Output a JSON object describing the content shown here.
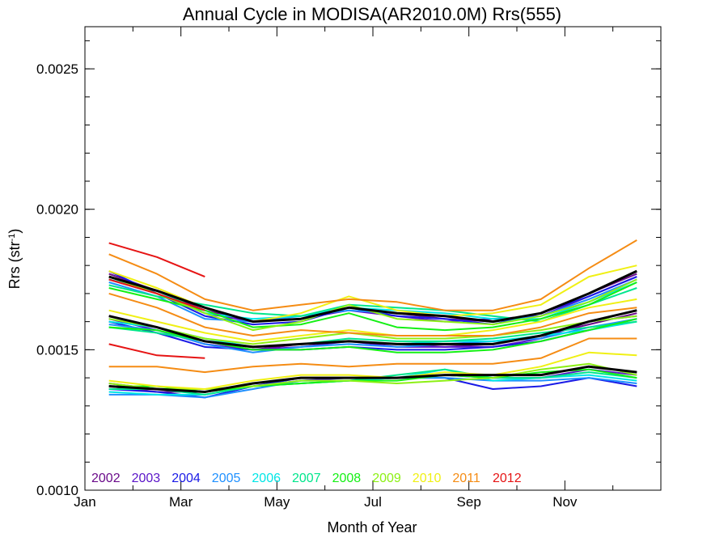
{
  "chart_data": {
    "type": "line",
    "title": "Annual Cycle in MODISA(AR2010.0M) Rrs(555)",
    "xlabel": "Month of Year",
    "ylabel_main": "Rrs (str",
    "ylabel_sup": "-1",
    "ylabel_tail": ")",
    "xlim": [
      0,
      12
    ],
    "ylim": [
      0.001,
      0.00265
    ],
    "x_ticks": [
      {
        "value": 0,
        "label": "Jan"
      },
      {
        "value": 2,
        "label": "Mar"
      },
      {
        "value": 4,
        "label": "May"
      },
      {
        "value": 6,
        "label": "Jul"
      },
      {
        "value": 8,
        "label": "Sep"
      },
      {
        "value": 10,
        "label": "Nov"
      }
    ],
    "x_minor_ticks": [
      1,
      3,
      5,
      7,
      9,
      11
    ],
    "y_ticks": [
      {
        "value": 0.001,
        "label": "0.0010"
      },
      {
        "value": 0.0015,
        "label": "0.0015"
      },
      {
        "value": 0.002,
        "label": "0.0020"
      },
      {
        "value": 0.0025,
        "label": "0.0025"
      }
    ],
    "y_minor_step": 0.0001,
    "x": [
      0.5,
      1.5,
      2.5,
      3.5,
      4.5,
      5.5,
      6.5,
      7.5,
      8.5,
      9.5,
      10.5,
      11.5
    ],
    "legend": [
      {
        "label": "2002",
        "color": "#6a0a8a"
      },
      {
        "label": "2003",
        "color": "#5a14c8"
      },
      {
        "label": "2004",
        "color": "#1a1ae6"
      },
      {
        "label": "2005",
        "color": "#1e90ff"
      },
      {
        "label": "2006",
        "color": "#00e6e6"
      },
      {
        "label": "2007",
        "color": "#00e68c"
      },
      {
        "label": "2008",
        "color": "#14f014"
      },
      {
        "label": "2009",
        "color": "#8cf014"
      },
      {
        "label": "2010",
        "color": "#f0f014"
      },
      {
        "label": "2011",
        "color": "#f58c14"
      },
      {
        "label": "2012",
        "color": "#e61414"
      }
    ],
    "series": [
      {
        "year": "2002",
        "color": "#6a0a8a",
        "group": "high",
        "values": [
          0.00177,
          0.00171,
          0.00164,
          0.0016,
          0.00161,
          0.00165,
          0.00163,
          0.00161,
          0.0016,
          0.00163,
          0.0017,
          0.00177
        ]
      },
      {
        "year": "2003",
        "color": "#5a14c8",
        "group": "high",
        "values": [
          0.00175,
          0.0017,
          0.00163,
          0.0016,
          0.00161,
          0.00164,
          0.00162,
          0.0016,
          0.00161,
          0.00162,
          0.00169,
          0.00176
        ]
      },
      {
        "year": "2004",
        "color": "#1a1ae6",
        "group": "high",
        "values": [
          0.00178,
          0.0017,
          0.00162,
          0.00159,
          0.0016,
          0.00165,
          0.00162,
          0.00161,
          0.00159,
          0.00163,
          0.00169,
          0.00176
        ]
      },
      {
        "year": "2005",
        "color": "#1e90ff",
        "group": "high",
        "values": [
          0.00174,
          0.00169,
          0.00161,
          0.0016,
          0.00162,
          0.00164,
          0.00163,
          0.00162,
          0.0016,
          0.00162,
          0.00168,
          0.00175
        ]
      },
      {
        "year": "2006",
        "color": "#00e6e6",
        "group": "high",
        "values": [
          0.00175,
          0.00171,
          0.00163,
          0.00161,
          0.00162,
          0.00165,
          0.00164,
          0.00163,
          0.00161,
          0.00161,
          0.00167,
          0.00174
        ]
      },
      {
        "year": "2007",
        "color": "#00e68c",
        "group": "high",
        "values": [
          0.00173,
          0.00169,
          0.00166,
          0.00163,
          0.00162,
          0.00166,
          0.00165,
          0.00164,
          0.00162,
          0.0016,
          0.00166,
          0.00172
        ]
      },
      {
        "year": "2008",
        "color": "#14f014",
        "group": "high",
        "values": [
          0.00172,
          0.00168,
          0.00164,
          0.00158,
          0.00159,
          0.00163,
          0.00158,
          0.00157,
          0.00158,
          0.00161,
          0.00166,
          0.00174
        ]
      },
      {
        "year": "2009",
        "color": "#8cf014",
        "group": "high",
        "values": [
          0.00176,
          0.0017,
          0.00163,
          0.00157,
          0.0016,
          0.00166,
          0.00161,
          0.0016,
          0.00159,
          0.00162,
          0.00167,
          0.00175
        ]
      },
      {
        "year": "2010",
        "color": "#f0f014",
        "group": "high",
        "values": [
          0.00178,
          0.00172,
          0.00165,
          0.0016,
          0.00163,
          0.00169,
          0.00164,
          0.00162,
          0.00163,
          0.00166,
          0.00176,
          0.0018
        ]
      },
      {
        "year": "2011",
        "color": "#f58c14",
        "group": "high",
        "values": [
          0.00184,
          0.00177,
          0.00168,
          0.00164,
          0.00166,
          0.00168,
          0.00167,
          0.00164,
          0.00164,
          0.00168,
          0.00179,
          0.00189
        ]
      },
      {
        "year": "2012",
        "color": "#e61414",
        "group": "high",
        "values": [
          0.00188,
          0.00183,
          0.00176,
          null,
          null,
          null,
          null,
          null,
          null,
          null,
          null,
          null
        ]
      },
      {
        "year": "2012",
        "color": "#e61414",
        "group": "high",
        "values": [
          0.00175,
          0.0017,
          0.00164,
          null,
          null,
          null,
          null,
          null,
          null,
          null,
          null,
          null
        ]
      },
      {
        "year": "2002",
        "color": "#6a0a8a",
        "group": "mid",
        "values": [
          0.00162,
          0.00158,
          0.00153,
          0.0015,
          0.00152,
          0.00153,
          0.00152,
          0.00151,
          0.00152,
          0.00155,
          0.00159,
          0.00163
        ]
      },
      {
        "year": "2003",
        "color": "#5a14c8",
        "group": "mid",
        "values": [
          0.00161,
          0.00157,
          0.00152,
          0.0015,
          0.00151,
          0.00153,
          0.00151,
          0.00151,
          0.00151,
          0.00154,
          0.0016,
          0.00162
        ]
      },
      {
        "year": "2004",
        "color": "#1a1ae6",
        "group": "mid",
        "values": [
          0.0016,
          0.00156,
          0.00151,
          0.0015,
          0.0015,
          0.00151,
          0.0015,
          0.0015,
          0.00151,
          0.00153,
          0.00157,
          0.00161
        ]
      },
      {
        "year": "2005",
        "color": "#1e90ff",
        "group": "mid",
        "values": [
          0.00159,
          0.00157,
          0.00152,
          0.00149,
          0.00151,
          0.00152,
          0.00151,
          0.00152,
          0.00153,
          0.00154,
          0.00158,
          0.00161
        ]
      },
      {
        "year": "2006",
        "color": "#00e6e6",
        "group": "mid",
        "values": [
          0.0016,
          0.00158,
          0.00154,
          0.00151,
          0.00152,
          0.00153,
          0.00152,
          0.00153,
          0.00153,
          0.00155,
          0.00157,
          0.0016
        ]
      },
      {
        "year": "2007",
        "color": "#00e68c",
        "group": "mid",
        "values": [
          0.00158,
          0.00156,
          0.00153,
          0.00151,
          0.00152,
          0.00154,
          0.00153,
          0.00153,
          0.00154,
          0.00156,
          0.00158,
          0.0016
        ]
      },
      {
        "year": "2008",
        "color": "#14f014",
        "group": "mid",
        "values": [
          0.00158,
          0.00157,
          0.00153,
          0.0015,
          0.0015,
          0.00151,
          0.00149,
          0.00149,
          0.0015,
          0.00153,
          0.00157,
          0.00161
        ]
      },
      {
        "year": "2009",
        "color": "#8cf014",
        "group": "mid",
        "values": [
          0.00161,
          0.00158,
          0.00154,
          0.00152,
          0.00154,
          0.00156,
          0.00154,
          0.00154,
          0.00155,
          0.00157,
          0.0016,
          0.00162
        ]
      },
      {
        "year": "2010",
        "color": "#f0f014",
        "group": "mid",
        "values": [
          0.00164,
          0.0016,
          0.00156,
          0.00153,
          0.00155,
          0.00157,
          0.00155,
          0.00155,
          0.00157,
          0.0016,
          0.00165,
          0.00168
        ]
      },
      {
        "year": "2011",
        "color": "#f58c14",
        "group": "mid",
        "values": [
          0.0017,
          0.00165,
          0.00158,
          0.00155,
          0.00157,
          0.00156,
          0.00155,
          0.00155,
          0.00155,
          0.00158,
          0.00163,
          0.00165
        ]
      },
      {
        "year": "2012",
        "color": "#e61414",
        "group": "mid",
        "values": [
          0.00152,
          0.00148,
          0.00147,
          null,
          null,
          null,
          null,
          null,
          null,
          null,
          null,
          null
        ]
      },
      {
        "year": "2002",
        "color": "#6a0a8a",
        "group": "low",
        "values": [
          0.00137,
          0.00135,
          0.00135,
          0.00138,
          0.0014,
          0.0014,
          0.0014,
          0.00141,
          0.00141,
          0.00141,
          0.00144,
          0.00142
        ]
      },
      {
        "year": "2003",
        "color": "#5a14c8",
        "group": "low",
        "values": [
          0.00138,
          0.00136,
          0.00135,
          0.00137,
          0.00139,
          0.0014,
          0.0014,
          0.00141,
          0.0014,
          0.0014,
          0.00143,
          0.00141
        ]
      },
      {
        "year": "2004",
        "color": "#1a1ae6",
        "group": "low",
        "values": [
          0.00136,
          0.00135,
          0.00133,
          0.00137,
          0.0014,
          0.0014,
          0.0014,
          0.0014,
          0.00136,
          0.00137,
          0.0014,
          0.00137
        ]
      },
      {
        "year": "2005",
        "color": "#1e90ff",
        "group": "low",
        "values": [
          0.00134,
          0.00134,
          0.00133,
          0.00136,
          0.00139,
          0.00139,
          0.0014,
          0.0014,
          0.00139,
          0.00139,
          0.0014,
          0.00138
        ]
      },
      {
        "year": "2006",
        "color": "#00e6e6",
        "group": "low",
        "values": [
          0.00135,
          0.00134,
          0.00134,
          0.00137,
          0.00138,
          0.00139,
          0.0014,
          0.00143,
          0.00139,
          0.0014,
          0.00141,
          0.00139
        ]
      },
      {
        "year": "2007",
        "color": "#00e68c",
        "group": "low",
        "values": [
          0.00136,
          0.00136,
          0.00134,
          0.00137,
          0.00138,
          0.00139,
          0.00141,
          0.00143,
          0.0014,
          0.0014,
          0.00142,
          0.0014
        ]
      },
      {
        "year": "2008",
        "color": "#14f014",
        "group": "low",
        "values": [
          0.00137,
          0.00137,
          0.00135,
          0.00137,
          0.00138,
          0.00139,
          0.00139,
          0.00141,
          0.0014,
          0.00142,
          0.00143,
          0.0014
        ]
      },
      {
        "year": "2009",
        "color": "#8cf014",
        "group": "low",
        "values": [
          0.00138,
          0.00136,
          0.00136,
          0.00137,
          0.00139,
          0.00139,
          0.00138,
          0.00139,
          0.0014,
          0.00143,
          0.00145,
          0.00141
        ]
      },
      {
        "year": "2010",
        "color": "#f0f014",
        "group": "low",
        "values": [
          0.00139,
          0.00137,
          0.00136,
          0.00139,
          0.00141,
          0.00141,
          0.0014,
          0.00142,
          0.00141,
          0.00144,
          0.00149,
          0.00148
        ]
      },
      {
        "year": "2011",
        "color": "#f58c14",
        "group": "low",
        "values": [
          0.00144,
          0.00144,
          0.00142,
          0.00144,
          0.00145,
          0.00144,
          0.00145,
          0.00145,
          0.00145,
          0.00147,
          0.00154,
          0.00154
        ]
      },
      {
        "year": "mean",
        "color": "#000000",
        "group": "high",
        "bold": true,
        "values": [
          0.00176,
          0.00171,
          0.00165,
          0.0016,
          0.00161,
          0.00165,
          0.00163,
          0.00162,
          0.0016,
          0.00163,
          0.0017,
          0.00178
        ]
      },
      {
        "year": "mean",
        "color": "#000000",
        "group": "mid",
        "bold": true,
        "values": [
          0.00162,
          0.00158,
          0.00153,
          0.00151,
          0.00152,
          0.00153,
          0.00152,
          0.00152,
          0.00152,
          0.00155,
          0.0016,
          0.00164
        ]
      },
      {
        "year": "mean",
        "color": "#000000",
        "group": "low",
        "bold": true,
        "values": [
          0.00137,
          0.00136,
          0.00135,
          0.00138,
          0.0014,
          0.0014,
          0.0014,
          0.00141,
          0.00141,
          0.00141,
          0.00144,
          0.00142
        ]
      }
    ]
  }
}
